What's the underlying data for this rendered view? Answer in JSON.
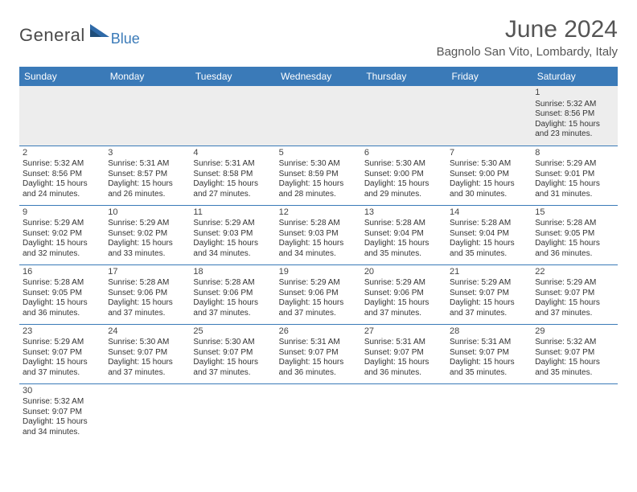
{
  "logo": {
    "main": "General",
    "sub": "Blue"
  },
  "header": {
    "month_title": "June 2024",
    "location": "Bagnolo San Vito, Lombardy, Italy"
  },
  "colors": {
    "header_bg": "#3a7ab8",
    "header_text": "#ffffff",
    "border": "#3a7ab8",
    "empty_bg": "#ededed",
    "body_text": "#333333",
    "logo_main": "#4a4a4a",
    "logo_sub": "#3a7ab8"
  },
  "weekdays": [
    "Sunday",
    "Monday",
    "Tuesday",
    "Wednesday",
    "Thursday",
    "Friday",
    "Saturday"
  ],
  "weeks": [
    [
      null,
      null,
      null,
      null,
      null,
      null,
      {
        "day": "1",
        "sunrise": "5:32 AM",
        "sunset": "8:56 PM",
        "daylight": "15 hours and 23 minutes."
      }
    ],
    [
      {
        "day": "2",
        "sunrise": "5:32 AM",
        "sunset": "8:56 PM",
        "daylight": "15 hours and 24 minutes."
      },
      {
        "day": "3",
        "sunrise": "5:31 AM",
        "sunset": "8:57 PM",
        "daylight": "15 hours and 26 minutes."
      },
      {
        "day": "4",
        "sunrise": "5:31 AM",
        "sunset": "8:58 PM",
        "daylight": "15 hours and 27 minutes."
      },
      {
        "day": "5",
        "sunrise": "5:30 AM",
        "sunset": "8:59 PM",
        "daylight": "15 hours and 28 minutes."
      },
      {
        "day": "6",
        "sunrise": "5:30 AM",
        "sunset": "9:00 PM",
        "daylight": "15 hours and 29 minutes."
      },
      {
        "day": "7",
        "sunrise": "5:30 AM",
        "sunset": "9:00 PM",
        "daylight": "15 hours and 30 minutes."
      },
      {
        "day": "8",
        "sunrise": "5:29 AM",
        "sunset": "9:01 PM",
        "daylight": "15 hours and 31 minutes."
      }
    ],
    [
      {
        "day": "9",
        "sunrise": "5:29 AM",
        "sunset": "9:02 PM",
        "daylight": "15 hours and 32 minutes."
      },
      {
        "day": "10",
        "sunrise": "5:29 AM",
        "sunset": "9:02 PM",
        "daylight": "15 hours and 33 minutes."
      },
      {
        "day": "11",
        "sunrise": "5:29 AM",
        "sunset": "9:03 PM",
        "daylight": "15 hours and 34 minutes."
      },
      {
        "day": "12",
        "sunrise": "5:28 AM",
        "sunset": "9:03 PM",
        "daylight": "15 hours and 34 minutes."
      },
      {
        "day": "13",
        "sunrise": "5:28 AM",
        "sunset": "9:04 PM",
        "daylight": "15 hours and 35 minutes."
      },
      {
        "day": "14",
        "sunrise": "5:28 AM",
        "sunset": "9:04 PM",
        "daylight": "15 hours and 35 minutes."
      },
      {
        "day": "15",
        "sunrise": "5:28 AM",
        "sunset": "9:05 PM",
        "daylight": "15 hours and 36 minutes."
      }
    ],
    [
      {
        "day": "16",
        "sunrise": "5:28 AM",
        "sunset": "9:05 PM",
        "daylight": "15 hours and 36 minutes."
      },
      {
        "day": "17",
        "sunrise": "5:28 AM",
        "sunset": "9:06 PM",
        "daylight": "15 hours and 37 minutes."
      },
      {
        "day": "18",
        "sunrise": "5:28 AM",
        "sunset": "9:06 PM",
        "daylight": "15 hours and 37 minutes."
      },
      {
        "day": "19",
        "sunrise": "5:29 AM",
        "sunset": "9:06 PM",
        "daylight": "15 hours and 37 minutes."
      },
      {
        "day": "20",
        "sunrise": "5:29 AM",
        "sunset": "9:06 PM",
        "daylight": "15 hours and 37 minutes."
      },
      {
        "day": "21",
        "sunrise": "5:29 AM",
        "sunset": "9:07 PM",
        "daylight": "15 hours and 37 minutes."
      },
      {
        "day": "22",
        "sunrise": "5:29 AM",
        "sunset": "9:07 PM",
        "daylight": "15 hours and 37 minutes."
      }
    ],
    [
      {
        "day": "23",
        "sunrise": "5:29 AM",
        "sunset": "9:07 PM",
        "daylight": "15 hours and 37 minutes."
      },
      {
        "day": "24",
        "sunrise": "5:30 AM",
        "sunset": "9:07 PM",
        "daylight": "15 hours and 37 minutes."
      },
      {
        "day": "25",
        "sunrise": "5:30 AM",
        "sunset": "9:07 PM",
        "daylight": "15 hours and 37 minutes."
      },
      {
        "day": "26",
        "sunrise": "5:31 AM",
        "sunset": "9:07 PM",
        "daylight": "15 hours and 36 minutes."
      },
      {
        "day": "27",
        "sunrise": "5:31 AM",
        "sunset": "9:07 PM",
        "daylight": "15 hours and 36 minutes."
      },
      {
        "day": "28",
        "sunrise": "5:31 AM",
        "sunset": "9:07 PM",
        "daylight": "15 hours and 35 minutes."
      },
      {
        "day": "29",
        "sunrise": "5:32 AM",
        "sunset": "9:07 PM",
        "daylight": "15 hours and 35 minutes."
      }
    ],
    [
      {
        "day": "30",
        "sunrise": "5:32 AM",
        "sunset": "9:07 PM",
        "daylight": "15 hours and 34 minutes."
      },
      null,
      null,
      null,
      null,
      null,
      null
    ]
  ],
  "labels": {
    "sunrise": "Sunrise:",
    "sunset": "Sunset:",
    "daylight": "Daylight:"
  }
}
